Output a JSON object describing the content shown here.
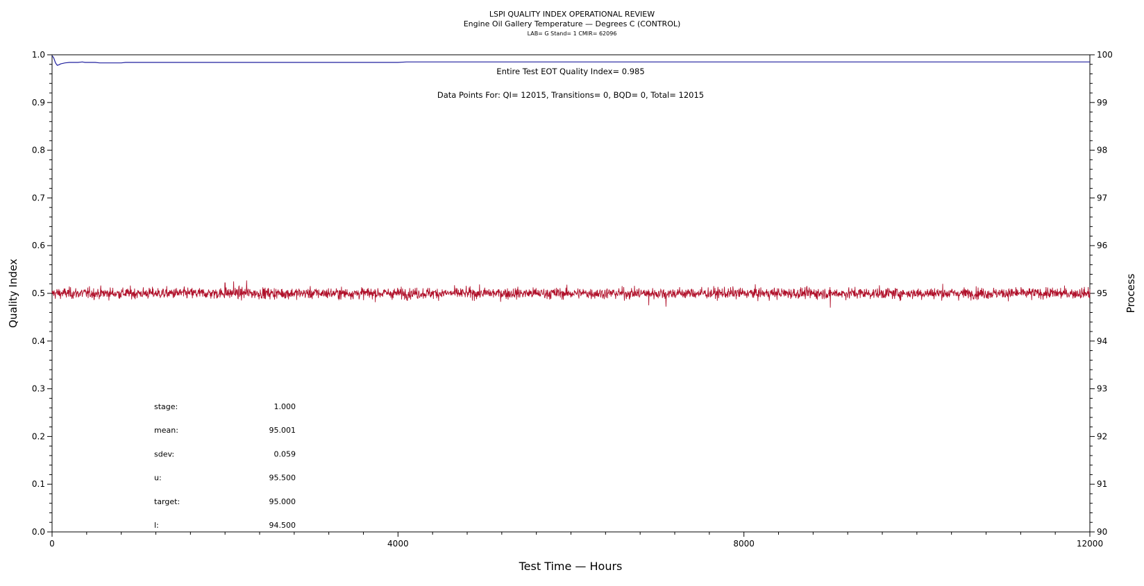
{
  "chart_data": {
    "type": "line",
    "title": "LSPI QUALITY INDEX OPERATIONAL REVIEW",
    "subtitle": "Engine Oil Gallery Temperature — Degrees C (CONTROL)",
    "subsubtitle": "LAB= G Stand= 1 CMIR= 62096",
    "xlabel": "Test Time — Hours",
    "ylabel_left": "Quality Index",
    "ylabel_right": "Process",
    "xlim": [
      0,
      12000
    ],
    "ylim_left": [
      0.0,
      1.0
    ],
    "ylim_right": [
      90,
      100
    ],
    "x_ticks": [
      "0",
      "4000",
      "8000",
      "12000"
    ],
    "y_left_ticks": [
      "0.0",
      "0.1",
      "0.2",
      "0.3",
      "0.4",
      "0.5",
      "0.6",
      "0.7",
      "0.8",
      "0.9",
      "1.0"
    ],
    "y_right_ticks": [
      "90",
      "91",
      "92",
      "93",
      "94",
      "95",
      "96",
      "97",
      "98",
      "99",
      "100"
    ],
    "annotations": {
      "qi_text": "Entire Test EOT Quality Index=   0.985",
      "points_text": "Data Points For: QI= 12015, Transitions=     0, BQD=     0, Total= 12015"
    },
    "stats": [
      {
        "label": "stage:",
        "value": "1.000"
      },
      {
        "label": "mean:",
        "value": "95.001"
      },
      {
        "label": "sdev:",
        "value": "0.059"
      },
      {
        "label": "u:",
        "value": "95.500"
      },
      {
        "label": "target:",
        "value": "95.000"
      },
      {
        "label": "l:",
        "value": "94.500"
      }
    ],
    "series": [
      {
        "axis": "left",
        "color": "#1f1f9e",
        "x": [
          0,
          10,
          20,
          30,
          40,
          60,
          80,
          100,
          150,
          200,
          300,
          350,
          380,
          500,
          550,
          800,
          850,
          1000,
          2000,
          4000,
          4100,
          4150,
          6000,
          8000,
          10000,
          12015
        ],
        "values": [
          0.998,
          0.996,
          0.993,
          0.988,
          0.983,
          0.978,
          0.979,
          0.981,
          0.983,
          0.984,
          0.984,
          0.985,
          0.984,
          0.984,
          0.983,
          0.983,
          0.984,
          0.984,
          0.984,
          0.984,
          0.985,
          0.985,
          0.985,
          0.985,
          0.985,
          0.985
        ]
      },
      {
        "axis": "right",
        "color": "#b0102a",
        "mean": 95.001,
        "sdev": 0.059,
        "n": 12015,
        "x": [
          0,
          2000,
          2100,
          2250,
          6900,
          7100,
          9000,
          10300,
          12000
        ],
        "values": [
          95.0,
          95.22,
          95.25,
          95.27,
          94.75,
          94.72,
          94.7,
          95.2,
          95.0
        ]
      }
    ]
  }
}
